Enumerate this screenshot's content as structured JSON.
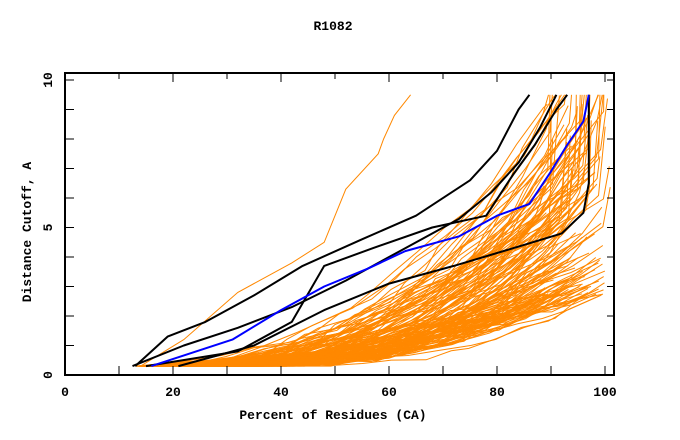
{
  "chart_data": {
    "type": "line",
    "title": "R1082",
    "xlabel": "Percent of Residues (CA)",
    "ylabel": "Distance Cutoff, A",
    "xlim": [
      0,
      100
    ],
    "ylim": [
      0,
      10
    ],
    "x_ticks": [
      0,
      20,
      40,
      60,
      80,
      100
    ],
    "y_ticks": [
      0,
      5,
      10
    ],
    "x_tick_labels": [
      "0",
      "20",
      "40",
      "60",
      "80",
      "100"
    ],
    "y_tick_labels": [
      "0",
      "5",
      "10"
    ],
    "grid": false,
    "legend": "none",
    "colors": {
      "models": "#ff8800",
      "highlight": "#000000",
      "reference": "#0000ff",
      "axes": "#000000"
    },
    "highlight_series": [
      {
        "name": "black-model-1",
        "color": "#000000",
        "points": [
          [
            13,
            0.3
          ],
          [
            19,
            1.3
          ],
          [
            26,
            1.8
          ],
          [
            35,
            2.7
          ],
          [
            44,
            3.7
          ],
          [
            55,
            4.6
          ],
          [
            65,
            5.4
          ],
          [
            75,
            6.6
          ],
          [
            80,
            7.6
          ],
          [
            84,
            9.0
          ],
          [
            86,
            9.5
          ]
        ]
      },
      {
        "name": "black-model-2",
        "color": "#000000",
        "points": [
          [
            12.5,
            0.3
          ],
          [
            22,
            1.0
          ],
          [
            32,
            1.6
          ],
          [
            42,
            2.3
          ],
          [
            52,
            3.2
          ],
          [
            63,
            4.3
          ],
          [
            73,
            5.3
          ],
          [
            79,
            6.2
          ],
          [
            84,
            7.2
          ],
          [
            88,
            8.4
          ],
          [
            91,
            9.5
          ]
        ]
      },
      {
        "name": "black-model-3",
        "color": "#000000",
        "points": [
          [
            15,
            0.3
          ],
          [
            32,
            0.8
          ],
          [
            42,
            1.8
          ],
          [
            48,
            3.7
          ],
          [
            57,
            4.3
          ],
          [
            68,
            5.0
          ],
          [
            78,
            5.4
          ],
          [
            83,
            6.8
          ],
          [
            87,
            7.8
          ],
          [
            91,
            9.0
          ],
          [
            93,
            9.5
          ]
        ]
      },
      {
        "name": "black-model-4",
        "color": "#000000",
        "points": [
          [
            21,
            0.3
          ],
          [
            35,
            1.0
          ],
          [
            48,
            2.2
          ],
          [
            60,
            3.1
          ],
          [
            72,
            3.7
          ],
          [
            83,
            4.3
          ],
          [
            92,
            4.8
          ],
          [
            96,
            5.5
          ],
          [
            97,
            6.5
          ],
          [
            97,
            9.5
          ]
        ]
      },
      {
        "name": "blue-model",
        "color": "#0000ff",
        "points": [
          [
            16,
            0.3
          ],
          [
            31,
            1.2
          ],
          [
            40,
            2.2
          ],
          [
            48,
            3.0
          ],
          [
            56,
            3.6
          ],
          [
            63,
            4.2
          ],
          [
            73,
            4.7
          ],
          [
            80,
            5.4
          ],
          [
            86,
            5.8
          ],
          [
            90,
            6.9
          ],
          [
            93,
            7.8
          ],
          [
            96,
            8.6
          ],
          [
            97,
            9.5
          ]
        ]
      }
    ],
    "outlier_series": [
      {
        "name": "orange-outlier",
        "points": [
          [
            14,
            0.3
          ],
          [
            22,
            1.2
          ],
          [
            32,
            2.8
          ],
          [
            42,
            3.8
          ],
          [
            48,
            4.5
          ],
          [
            52,
            6.3
          ],
          [
            58,
            7.5
          ],
          [
            59,
            8.0
          ],
          [
            61,
            8.8
          ],
          [
            64,
            9.5
          ]
        ]
      }
    ],
    "model_family": {
      "description": "bundle of ~150 orange model curves spanning start 13-25% at 0.3 A to end 88-100% at 2.7-9.5 A",
      "count": 150,
      "start_x_range": [
        13,
        25
      ],
      "end_x_range": [
        88,
        100
      ],
      "end_y_range": [
        2.7,
        9.5
      ]
    }
  }
}
